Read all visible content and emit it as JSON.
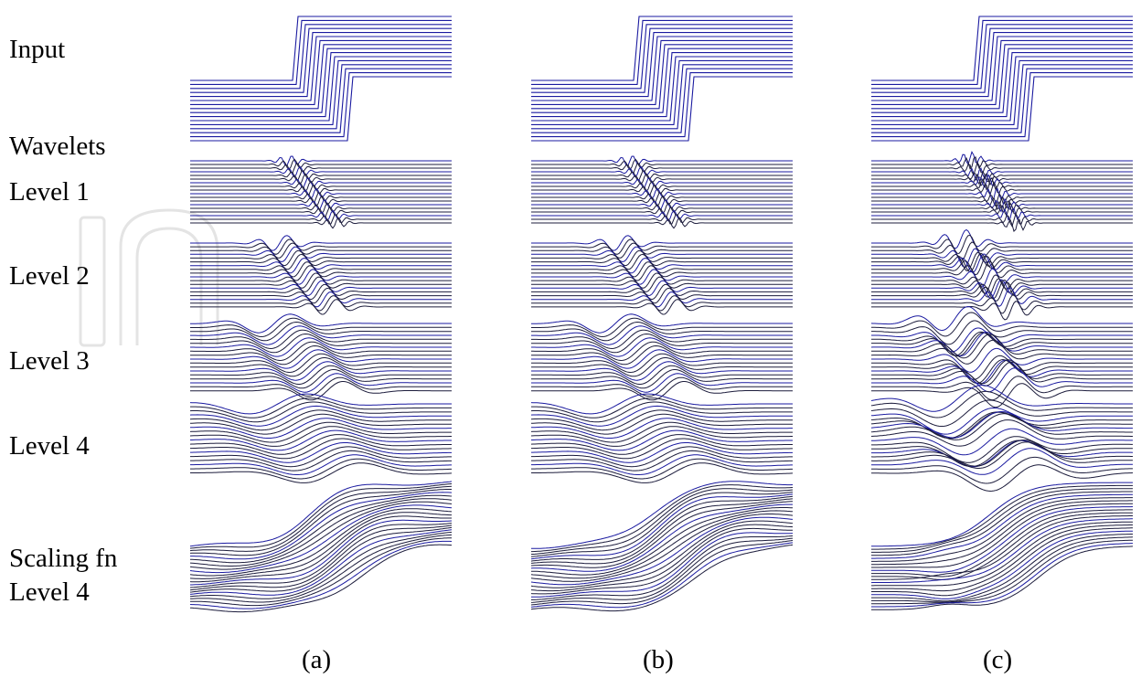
{
  "row_labels": {
    "input": "Input",
    "wavelets": "Wavelets",
    "level1": "Level 1",
    "level2": "Level 2",
    "level3": "Level 3",
    "level4": "Level 4",
    "scaling_fn": "Scaling fn",
    "scaling_level": "Level 4"
  },
  "panel_captions": [
    "(a)",
    "(b)",
    "(c)"
  ],
  "colors": {
    "trace_blue": "#1a1aa0",
    "trace_dark": "#1c1c3c",
    "watermark": "#e6e6e6"
  }
}
